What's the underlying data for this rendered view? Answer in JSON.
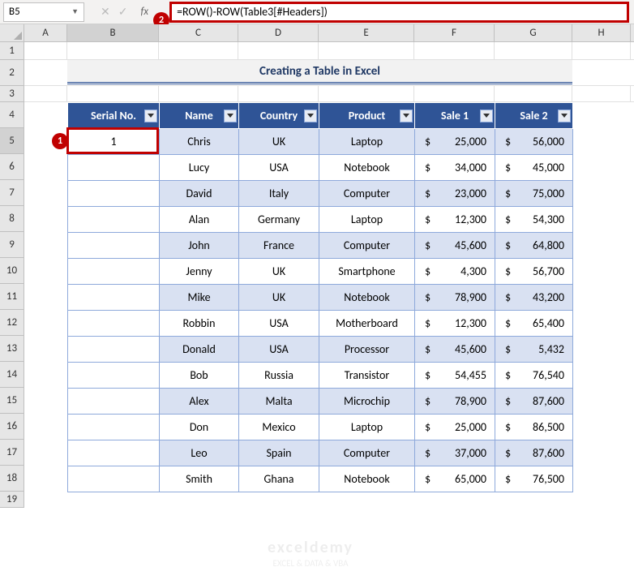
{
  "name_box_value": "B5",
  "formula_bar_value": "=ROW()-ROW(Table3[#Headers])",
  "fx_label": "fx",
  "callouts": {
    "one": "1",
    "two": "2"
  },
  "title": "Creating a Table in Excel",
  "columns": {
    "letters": [
      "A",
      "B",
      "C",
      "D",
      "E",
      "F",
      "G",
      "H"
    ],
    "widths": [
      53,
      113,
      98,
      99,
      118,
      99,
      96,
      72
    ],
    "selected": "B"
  },
  "row_numbers": [
    1,
    2,
    3,
    4,
    5,
    6,
    7,
    8,
    9,
    10,
    11,
    12,
    13,
    14,
    15,
    16,
    17,
    18,
    19
  ],
  "selected_row": 5,
  "headers": [
    "Serial No.",
    "Name",
    "Country",
    "Product",
    "Sale 1",
    "Sale 2"
  ],
  "rows": [
    {
      "serial": "1",
      "name": "Chris",
      "country": "UK",
      "product": "Laptop",
      "s1": "25,000",
      "s2": "56,000"
    },
    {
      "serial": "",
      "name": "Lucy",
      "country": "USA",
      "product": "Notebook",
      "s1": "34,000",
      "s2": "45,000"
    },
    {
      "serial": "",
      "name": "David",
      "country": "Italy",
      "product": "Computer",
      "s1": "23,000",
      "s2": "75,000"
    },
    {
      "serial": "",
      "name": "Alan",
      "country": "Germany",
      "product": "Laptop",
      "s1": "12,300",
      "s2": "54,300"
    },
    {
      "serial": "",
      "name": "John",
      "country": "France",
      "product": "Computer",
      "s1": "45,600",
      "s2": "64,800"
    },
    {
      "serial": "",
      "name": "Jenny",
      "country": "UK",
      "product": "Smartphone",
      "s1": "4,300",
      "s2": "56,700"
    },
    {
      "serial": "",
      "name": "Mike",
      "country": "UK",
      "product": "Notebook",
      "s1": "78,900",
      "s2": "43,200"
    },
    {
      "serial": "",
      "name": "Robbin",
      "country": "USA",
      "product": "Motherboard",
      "s1": "12,300",
      "s2": "65,400"
    },
    {
      "serial": "",
      "name": "Donald",
      "country": "USA",
      "product": "Processor",
      "s1": "45,600",
      "s2": "5,432"
    },
    {
      "serial": "",
      "name": "Bob",
      "country": "Russia",
      "product": "Transistor",
      "s1": "54,455",
      "s2": "76,540"
    },
    {
      "serial": "",
      "name": "Alex",
      "country": "Malta",
      "product": "Microchip",
      "s1": "78,900",
      "s2": "87,600"
    },
    {
      "serial": "",
      "name": "Don",
      "country": "Mexico",
      "product": "Laptop",
      "s1": "25,000",
      "s2": "86,500"
    },
    {
      "serial": "",
      "name": "Leo",
      "country": "Spain",
      "product": "Computer",
      "s1": "37,000",
      "s2": "87,600"
    },
    {
      "serial": "",
      "name": "Smith",
      "country": "Ghana",
      "product": "Notebook",
      "s1": "65,000",
      "s2": "76,500"
    }
  ],
  "currency": "$",
  "watermark": {
    "brand": "exceldemy",
    "tag": "EXCEL & DATA & VBA"
  },
  "colors": {
    "header_bg": "#2f5496",
    "odd_row": "#d9e1f2",
    "even_row": "#ffffff",
    "highlight": "#c00000",
    "title_underline": "#2f5496"
  }
}
